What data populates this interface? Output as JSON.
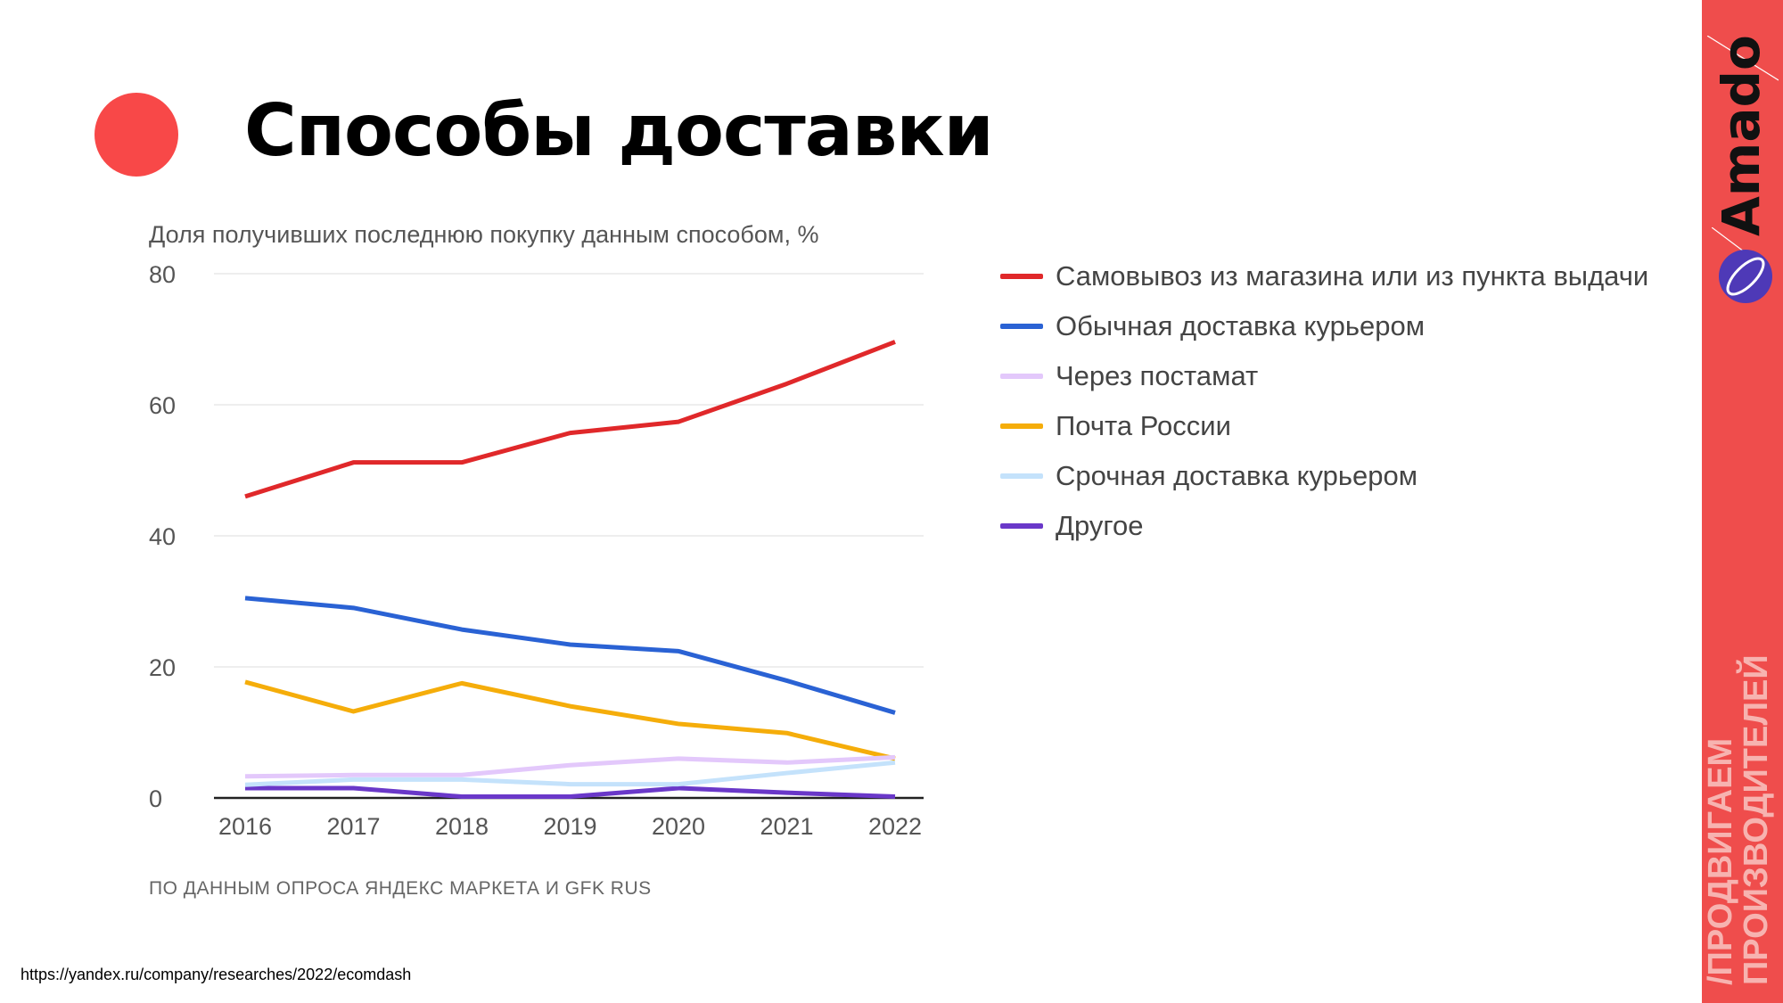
{
  "header": {
    "title": "Способы доставки"
  },
  "chart_data": {
    "type": "line",
    "title": "Доля получивших последнюю покупку данным способом, %",
    "xlabel": "",
    "ylabel": "",
    "x": [
      "2016",
      "2017",
      "2018",
      "2019",
      "2020",
      "2021",
      "2022"
    ],
    "ylim": [
      0,
      80
    ],
    "yticks": [
      "0",
      "20",
      "40",
      "60",
      "80"
    ],
    "grid": true,
    "legend_position": "right",
    "series": [
      {
        "name": "Самовывоз из магазина или из пункта выдачи",
        "color": "#e0282a",
        "values": [
          46,
          51.2,
          51.2,
          55.7,
          57.4,
          63.2,
          69.6
        ]
      },
      {
        "name": "Обычная доставка курьером",
        "color": "#2a62d4",
        "values": [
          30.5,
          29,
          25.7,
          23.4,
          22.4,
          17.9,
          13
        ]
      },
      {
        "name": "Через постамат",
        "color": "#e3c8fb",
        "values": [
          3.3,
          3.5,
          3.5,
          5,
          6,
          5.4,
          6.2
        ]
      },
      {
        "name": "Почта России",
        "color": "#f5ad0a",
        "values": [
          17.7,
          13.2,
          17.5,
          14,
          11.3,
          9.9,
          6
        ]
      },
      {
        "name": "Срочная доставка курьером",
        "color": "#c4e2fb",
        "values": [
          2,
          2.8,
          2.8,
          2.1,
          2.1,
          3.8,
          5.4
        ]
      },
      {
        "name": "Другое",
        "color": "#6a38c9",
        "values": [
          1.5,
          1.5,
          0.2,
          0.2,
          1.5,
          0.8,
          0.2
        ]
      }
    ],
    "source": "ПО ДАННЫМ ОПРОСА ЯНДЕКС МАРКЕТА И GFK RUS"
  },
  "footer": {
    "url": "https://yandex.ru/company/researches/2022/ecomdash"
  },
  "sidebar": {
    "brand": "Amado",
    "slogan_line1": "/ПРОДВИГАЕМ",
    "slogan_line2": "ПРОИЗВОДИТЕЛЕЙ",
    "color": "#ef4d4c"
  }
}
